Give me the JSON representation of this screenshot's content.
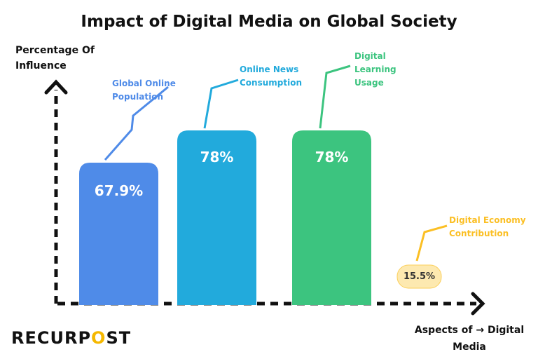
{
  "chart_data": {
    "type": "bar",
    "title": "Impact of Digital Media on Global Society",
    "ylabel": "Percentage Of Influence",
    "xlabel": "Aspects of  → Digital Media",
    "categories": [
      "Global Online Population",
      "Online News Consumption",
      "Digital Learning Usage",
      "Digital Economy Contribution"
    ],
    "values": [
      67.9,
      78,
      78,
      15.5
    ],
    "labels": [
      "67.9%",
      "78%",
      "78%",
      "15.5%"
    ],
    "colors": [
      "#4f8be8",
      "#22aadc",
      "#3cc47f",
      "#fbbf24"
    ],
    "grid": false
  },
  "logo": {
    "text_a": "RECURP",
    "text_o": "O",
    "text_b": "ST"
  }
}
